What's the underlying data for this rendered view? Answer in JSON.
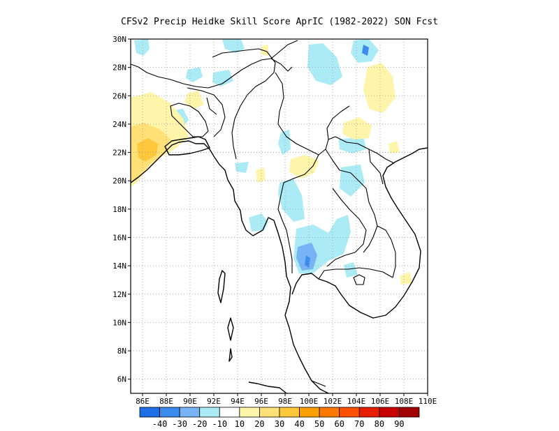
{
  "title": "CFSv2 Precip Heidke Skill Score AprIC (1982-2022) SON Fcst",
  "map": {
    "lon_range": [
      85,
      110
    ],
    "lat_range": [
      5,
      30
    ],
    "x_tick_labels": [
      "86E",
      "88E",
      "90E",
      "92E",
      "94E",
      "96E",
      "98E",
      "100E",
      "102E",
      "104E",
      "106E",
      "108E",
      "110E"
    ],
    "y_tick_labels": [
      "6N",
      "8N",
      "10N",
      "12N",
      "14N",
      "16N",
      "18N",
      "20N",
      "22N",
      "24N",
      "26N",
      "28N",
      "30N"
    ],
    "gridlines": "dotted"
  },
  "colorbar": {
    "colors": [
      "#1e6ee6",
      "#3c8cf0",
      "#78b4f5",
      "#aaebf5",
      "#ffffff",
      "#fff5aa",
      "#ffe178",
      "#ffc83c",
      "#ffa000",
      "#ff7800",
      "#ff5000",
      "#e61e00",
      "#c80000",
      "#a00000"
    ],
    "labels": [
      "-40",
      "-30",
      "-20",
      "-10",
      "10",
      "20",
      "30",
      "40",
      "50",
      "60",
      "70",
      "80",
      "90"
    ]
  },
  "color_keys": {
    "light_blue": "#aaebf5",
    "mid_blue": "#78b4f5",
    "blue": "#3c8cf0",
    "light_yellow": "#fff5aa",
    "yellow": "#ffe178",
    "orange": "#ffc83c"
  }
}
